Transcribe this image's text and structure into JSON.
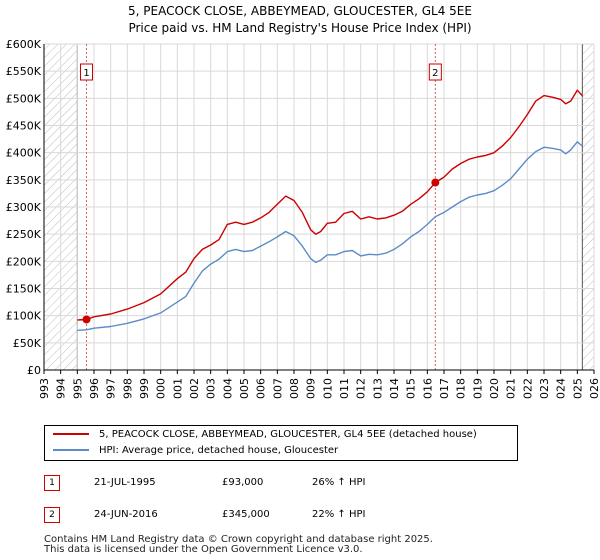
{
  "chart_data": {
    "type": "line",
    "title": "5, PEACOCK CLOSE, ABBEYMEAD, GLOUCESTER, GL4 5EE",
    "subtitle": "Price paid vs. HM Land Registry's House Price Index (HPI)",
    "xlabel": "",
    "ylabel": "",
    "xlim": [
      1993,
      2026
    ],
    "ylim": [
      0,
      600000
    ],
    "x_ticks": [
      1993,
      1994,
      1995,
      1996,
      1997,
      1998,
      1999,
      2000,
      2001,
      2002,
      2003,
      2004,
      2005,
      2006,
      2007,
      2008,
      2009,
      2010,
      2011,
      2012,
      2013,
      2014,
      2015,
      2016,
      2017,
      2018,
      2019,
      2020,
      2021,
      2022,
      2023,
      2024,
      2025,
      2026
    ],
    "x_tick_labels": [
      "1993",
      "1994",
      "1995",
      "1996",
      "1997",
      "1998",
      "1999",
      "2000",
      "2001",
      "2002",
      "2003",
      "2004",
      "2005",
      "2006",
      "2007",
      "2008",
      "2009",
      "2010",
      "2011",
      "2012",
      "2013",
      "2014",
      "2015",
      "2016",
      "2017",
      "2018",
      "2019",
      "2020",
      "2021",
      "2022",
      "2023",
      "2024",
      "2025",
      "2026"
    ],
    "y_ticks": [
      0,
      50000,
      100000,
      150000,
      200000,
      250000,
      300000,
      350000,
      400000,
      450000,
      500000,
      550000,
      600000
    ],
    "y_tick_labels": [
      "£0",
      "£50K",
      "£100K",
      "£150K",
      "£200K",
      "£250K",
      "£300K",
      "£350K",
      "£400K",
      "£450K",
      "£500K",
      "£550K",
      "£600K"
    ],
    "data_start_year": 1995.0,
    "data_end_year": 2025.3,
    "grid": true,
    "series": [
      {
        "name": "5, PEACOCK CLOSE, ABBEYMEAD, GLOUCESTER, GL4 5EE (detached house)",
        "color": "#cc0000",
        "x": [
          1995.0,
          1995.55,
          1996.0,
          1997.0,
          1998.0,
          1999.0,
          2000.0,
          2001.0,
          2001.5,
          2002.0,
          2002.5,
          2003.0,
          2003.5,
          2004.0,
          2004.5,
          2005.0,
          2005.5,
          2006.0,
          2006.5,
          2007.0,
          2007.5,
          2008.0,
          2008.5,
          2009.0,
          2009.3,
          2009.6,
          2010.0,
          2010.5,
          2011.0,
          2011.5,
          2012.0,
          2012.5,
          2013.0,
          2013.5,
          2014.0,
          2014.5,
          2015.0,
          2015.5,
          2016.0,
          2016.48,
          2017.0,
          2017.5,
          2018.0,
          2018.5,
          2019.0,
          2019.5,
          2020.0,
          2020.5,
          2021.0,
          2021.5,
          2022.0,
          2022.5,
          2023.0,
          2023.5,
          2024.0,
          2024.3,
          2024.6,
          2025.0,
          2025.3
        ],
        "values": [
          92000,
          93000,
          98000,
          103000,
          112000,
          124000,
          140000,
          168000,
          180000,
          205000,
          222000,
          230000,
          240000,
          268000,
          272000,
          268000,
          272000,
          280000,
          290000,
          305000,
          320000,
          312000,
          290000,
          258000,
          250000,
          255000,
          270000,
          272000,
          288000,
          292000,
          278000,
          282000,
          278000,
          280000,
          285000,
          292000,
          305000,
          315000,
          328000,
          345000,
          355000,
          370000,
          380000,
          388000,
          392000,
          395000,
          400000,
          412000,
          428000,
          448000,
          470000,
          495000,
          505000,
          502000,
          498000,
          490000,
          495000,
          515000,
          505000
        ]
      },
      {
        "name": "HPI: Average price, detached house, Gloucester",
        "color": "#5b8cc7",
        "x": [
          1995.0,
          1995.55,
          1996.0,
          1997.0,
          1998.0,
          1999.0,
          2000.0,
          2001.0,
          2001.5,
          2002.0,
          2002.5,
          2003.0,
          2003.5,
          2004.0,
          2004.5,
          2005.0,
          2005.5,
          2006.0,
          2006.5,
          2007.0,
          2007.5,
          2008.0,
          2008.5,
          2009.0,
          2009.3,
          2009.6,
          2010.0,
          2010.5,
          2011.0,
          2011.5,
          2012.0,
          2012.5,
          2013.0,
          2013.5,
          2014.0,
          2014.5,
          2015.0,
          2015.5,
          2016.0,
          2016.48,
          2017.0,
          2017.5,
          2018.0,
          2018.5,
          2019.0,
          2019.5,
          2020.0,
          2020.5,
          2021.0,
          2021.5,
          2022.0,
          2022.5,
          2023.0,
          2023.5,
          2024.0,
          2024.3,
          2024.6,
          2025.0,
          2025.3
        ],
        "values": [
          73000,
          74000,
          77000,
          80000,
          86000,
          94000,
          105000,
          125000,
          135000,
          160000,
          182000,
          195000,
          204000,
          218000,
          222000,
          218000,
          220000,
          228000,
          236000,
          245000,
          255000,
          247000,
          228000,
          205000,
          198000,
          202000,
          212000,
          212000,
          218000,
          220000,
          210000,
          213000,
          212000,
          215000,
          222000,
          232000,
          245000,
          255000,
          268000,
          282000,
          290000,
          300000,
          310000,
          318000,
          322000,
          325000,
          330000,
          340000,
          352000,
          370000,
          388000,
          402000,
          410000,
          408000,
          405000,
          398000,
          405000,
          420000,
          412000
        ]
      }
    ],
    "sales": [
      {
        "id": "1",
        "year": 1995.55,
        "price": 93000,
        "date": "21-JUL-1995",
        "price_label": "£93,000",
        "hpi_label": "26% ↑ HPI"
      },
      {
        "id": "2",
        "year": 2016.48,
        "price": 345000,
        "date": "24-JUN-2016",
        "price_label": "£345,000",
        "hpi_label": "22% ↑ HPI"
      }
    ]
  },
  "legend": {
    "property_label": "5, PEACOCK CLOSE, ABBEYMEAD, GLOUCESTER, GL4 5EE (detached house)",
    "hpi_label": "HPI: Average price, detached house, Gloucester"
  },
  "footer": {
    "line1": "Contains HM Land Registry data © Crown copyright and database right 2025.",
    "line2": "This data is licensed under the Open Government Licence v3.0."
  },
  "colors": {
    "property": "#cc0000",
    "hpi": "#5b8cc7",
    "grid": "#d9d9d9",
    "hatch": "#bdbdbd"
  }
}
